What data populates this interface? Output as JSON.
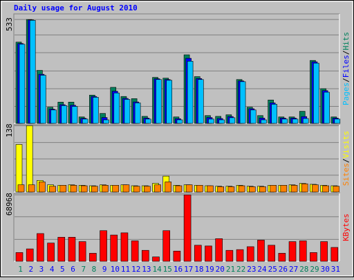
{
  "title": "Daily usage for August 2010",
  "separator": "/",
  "chart_data": [
    {
      "type": "bar",
      "ylim": [
        0,
        562
      ],
      "yticks": [
        533
      ],
      "grid_values": [
        454,
        363,
        269,
        178,
        87
      ],
      "series": [
        {
          "name": "Hits",
          "color": "#00805c",
          "values": [
            417,
            533,
            272,
            83,
            109,
            109,
            33,
            145,
            51,
            185,
            138,
            127,
            36,
            236,
            232,
            33,
            352,
            240,
            40,
            36,
            44,
            225,
            83,
            40,
            120,
            33,
            33,
            62,
            323,
            178,
            33
          ]
        },
        {
          "name": "Files",
          "color": "#0000ff",
          "values": [
            410,
            531,
            252,
            73,
            96,
            93,
            26,
            138,
            30,
            165,
            128,
            110,
            27,
            229,
            225,
            24,
            334,
            230,
            30,
            25,
            35,
            218,
            75,
            27,
            105,
            27,
            27,
            35,
            316,
            168,
            27
          ]
        },
        {
          "name": "Pages",
          "color": "#00c0ff",
          "values": [
            406,
            529,
            247,
            69,
            91,
            87,
            22,
            134,
            18,
            156,
            123,
            105,
            22,
            225,
            221,
            18,
            319,
            225,
            22,
            18,
            29,
            214,
            69,
            18,
            98,
            22,
            22,
            25,
            309,
            160,
            22
          ]
        }
      ]
    },
    {
      "type": "bar",
      "ylim": [
        0,
        140
      ],
      "yticks": [
        138
      ],
      "grid_values": [
        103,
        69,
        35
      ],
      "series": [
        {
          "name": "Visits",
          "color": "#ffff00",
          "values": [
            99,
            138,
            24,
            15,
            14,
            15,
            14,
            13,
            15,
            14,
            15,
            13,
            13,
            18,
            33,
            14,
            15,
            14,
            13,
            12,
            12,
            14,
            12,
            12,
            14,
            14,
            15,
            18,
            16,
            14,
            13
          ]
        },
        {
          "name": "Sites",
          "color": "#ff8000",
          "values": [
            15,
            15,
            21,
            12,
            14,
            14,
            13,
            12,
            14,
            14,
            15,
            12,
            12,
            15,
            21,
            13,
            15,
            14,
            13,
            11,
            11,
            13,
            11,
            11,
            14,
            14,
            14,
            17,
            15,
            13,
            12
          ]
        }
      ]
    },
    {
      "type": "bar",
      "ylim": [
        0,
        70500
      ],
      "yticks": [
        68968
      ],
      "grid_values": [
        46230,
        22736
      ],
      "categories": [
        "1",
        "2",
        "3",
        "4",
        "5",
        "6",
        "7",
        "8",
        "9",
        "10",
        "11",
        "12",
        "13",
        "14",
        "15",
        "16",
        "17",
        "18",
        "19",
        "20",
        "21",
        "22",
        "23",
        "24",
        "25",
        "26",
        "27",
        "28",
        "29",
        "30",
        "31"
      ],
      "highlight_categories": [
        "1",
        "7",
        "8",
        "14",
        "15",
        "21",
        "22",
        "28",
        "29"
      ],
      "highlight_color": "#00805c",
      "label_color": "#0000ff",
      "series": [
        {
          "name": "KBytes",
          "color": "#ff0000",
          "values": [
            9094,
            12884,
            28800,
            18950,
            25000,
            25000,
            20460,
            8340,
            31830,
            27280,
            29560,
            21220,
            11370,
            4550,
            31830,
            10610,
            68968,
            16670,
            15920,
            23490,
            11370,
            12130,
            15160,
            21980,
            16670,
            8340,
            20460,
            21220,
            9094,
            20460,
            14400
          ]
        }
      ]
    }
  ]
}
